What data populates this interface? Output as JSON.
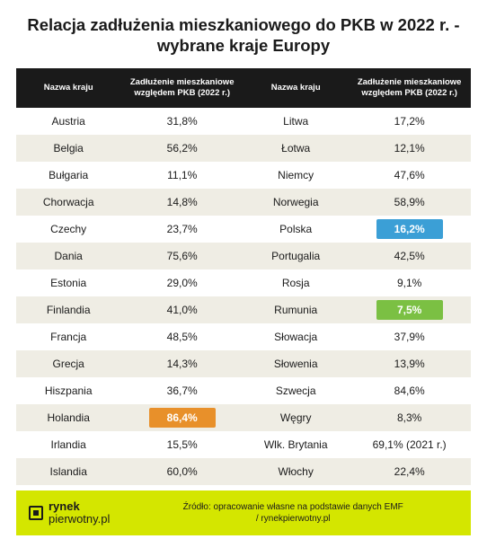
{
  "title": "Relacja zadłużenia mieszkaniowego\ndo PKB w 2022 r. - wybrane kraje Europy",
  "headers": {
    "country": "Nazwa kraju",
    "value": "Zadłużenie mieszkaniowe\nwzględem PKB (2022 r.)"
  },
  "rows": [
    {
      "c1": "Austria",
      "v1": "31,8%",
      "c2": "Litwa",
      "v2": "17,2%"
    },
    {
      "c1": "Belgia",
      "v1": "56,2%",
      "c2": "Łotwa",
      "v2": "12,1%"
    },
    {
      "c1": "Bułgaria",
      "v1": "11,1%",
      "c2": "Niemcy",
      "v2": "47,6%"
    },
    {
      "c1": "Chorwacja",
      "v1": "14,8%",
      "c2": "Norwegia",
      "v2": "58,9%"
    },
    {
      "c1": "Czechy",
      "v1": "23,7%",
      "c2": "Polska",
      "v2": "16,2%",
      "hl2": "#3b9fd6"
    },
    {
      "c1": "Dania",
      "v1": "75,6%",
      "c2": "Portugalia",
      "v2": "42,5%"
    },
    {
      "c1": "Estonia",
      "v1": "29,0%",
      "c2": "Rosja",
      "v2": "9,1%"
    },
    {
      "c1": "Finlandia",
      "v1": "41,0%",
      "c2": "Rumunia",
      "v2": "7,5%",
      "hl2": "#7bc043"
    },
    {
      "c1": "Francja",
      "v1": "48,5%",
      "c2": "Słowacja",
      "v2": "37,9%"
    },
    {
      "c1": "Grecja",
      "v1": "14,3%",
      "c2": "Słowenia",
      "v2": "13,9%"
    },
    {
      "c1": "Hiszpania",
      "v1": "36,7%",
      "c2": "Szwecja",
      "v2": "84,6%"
    },
    {
      "c1": "Holandia",
      "v1": "86,4%",
      "hl1": "#e8902a",
      "c2": "Węgry",
      "v2": "8,3%"
    },
    {
      "c1": "Irlandia",
      "v1": "15,5%",
      "c2": "Wlk. Brytania",
      "v2": "69,1% (2021 r.)"
    },
    {
      "c1": "Islandia",
      "v1": "60,0%",
      "c2": "Włochy",
      "v2": "22,4%"
    }
  ],
  "footer": {
    "logo_top": "rynek",
    "logo_bottom": "pierwotny.pl",
    "source": "Źródło:  opracowanie własne na podstawie danych EMF\n/ rynekpierwotny.pl"
  },
  "colors": {
    "header_bg": "#1a1a1a",
    "row_even_bg": "#efede4",
    "row_odd_bg": "#ffffff",
    "footer_bg": "#d4e600",
    "text": "#1a1a1a",
    "highlight_text": "#ffffff"
  }
}
